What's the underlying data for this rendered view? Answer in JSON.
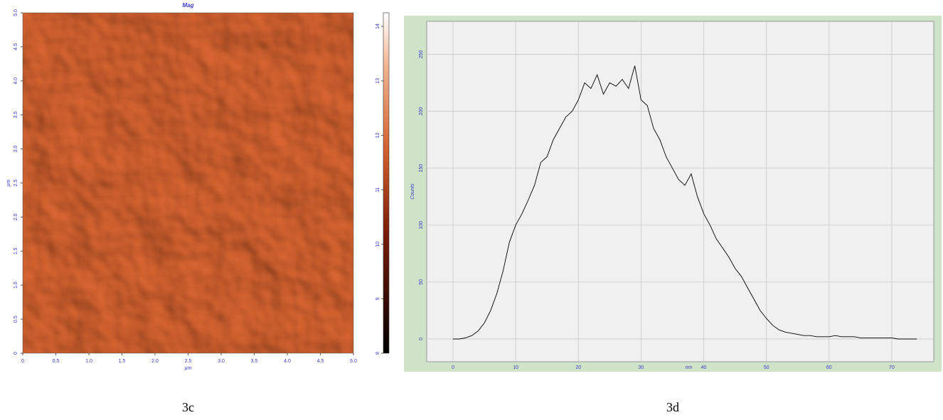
{
  "chart_data": [
    {
      "type": "image",
      "title": "Mag",
      "caption": "3c",
      "xlabel": "µm",
      "ylabel": "µm",
      "xlim": [
        0,
        5
      ],
      "ylim": [
        0,
        5
      ],
      "xticks": [
        0,
        0.5,
        {
          "value": 1,
          "label": "1.0"
        },
        1.5,
        {
          "value": 2,
          "label": "2.0"
        },
        2.5,
        {
          "value": 3,
          "label": "3.0"
        },
        3.5,
        {
          "value": 4,
          "label": "4.0"
        },
        4.5,
        {
          "value": 5,
          "label": "5.0"
        }
      ],
      "yticks": [
        0,
        0.5,
        {
          "value": 1,
          "label": "1.0"
        },
        1.5,
        {
          "value": 2,
          "label": "2.0"
        },
        2.5,
        {
          "value": 3,
          "label": "3.0"
        },
        3.5,
        {
          "value": 4,
          "label": "4.0"
        },
        4.5,
        {
          "value": 5,
          "label": "5.0"
        }
      ],
      "color": "#d4612d",
      "clim": [
        8,
        14.25
      ],
      "cticks": [
        8,
        9,
        10,
        11,
        12,
        13,
        14
      ]
    },
    {
      "type": "line",
      "caption": "3d",
      "xlabel": "nm",
      "ylabel": "Counts",
      "x": [
        0,
        1,
        2,
        3,
        4,
        5,
        6,
        7,
        8,
        9,
        10,
        11,
        12,
        13,
        14,
        15,
        16,
        17,
        18,
        19,
        20,
        21,
        22,
        23,
        24,
        25,
        26,
        27,
        28,
        29,
        30,
        31,
        32,
        33,
        34,
        35,
        36,
        37,
        38,
        39,
        40,
        41,
        42,
        43,
        44,
        45,
        46,
        47,
        48,
        49,
        50,
        51,
        52,
        53,
        54,
        55,
        56,
        57,
        58,
        59,
        60,
        61,
        62,
        63,
        64,
        65,
        66,
        67,
        68,
        69,
        70,
        71,
        72,
        73,
        74
      ],
      "values": [
        0,
        0,
        1,
        3,
        7,
        14,
        25,
        40,
        60,
        85,
        100,
        110,
        122,
        135,
        155,
        160,
        175,
        185,
        195,
        200,
        210,
        225,
        220,
        232,
        215,
        225,
        222,
        228,
        220,
        240,
        210,
        205,
        185,
        175,
        160,
        150,
        140,
        135,
        145,
        125,
        110,
        100,
        88,
        80,
        72,
        62,
        55,
        45,
        35,
        25,
        18,
        12,
        8,
        6,
        5,
        4,
        3,
        3,
        2,
        2,
        2,
        3,
        2,
        2,
        2,
        1,
        1,
        1,
        1,
        1,
        1,
        0,
        0,
        0,
        0
      ],
      "color": "#000000",
      "xlim": [
        -4.2,
        76.7
      ],
      "ylim": [
        -20,
        279
      ],
      "xticks": [
        0,
        10,
        20,
        30,
        40,
        50,
        60,
        70
      ],
      "yticks": [
        0,
        50,
        100,
        150,
        200,
        250
      ],
      "grid": true
    }
  ]
}
